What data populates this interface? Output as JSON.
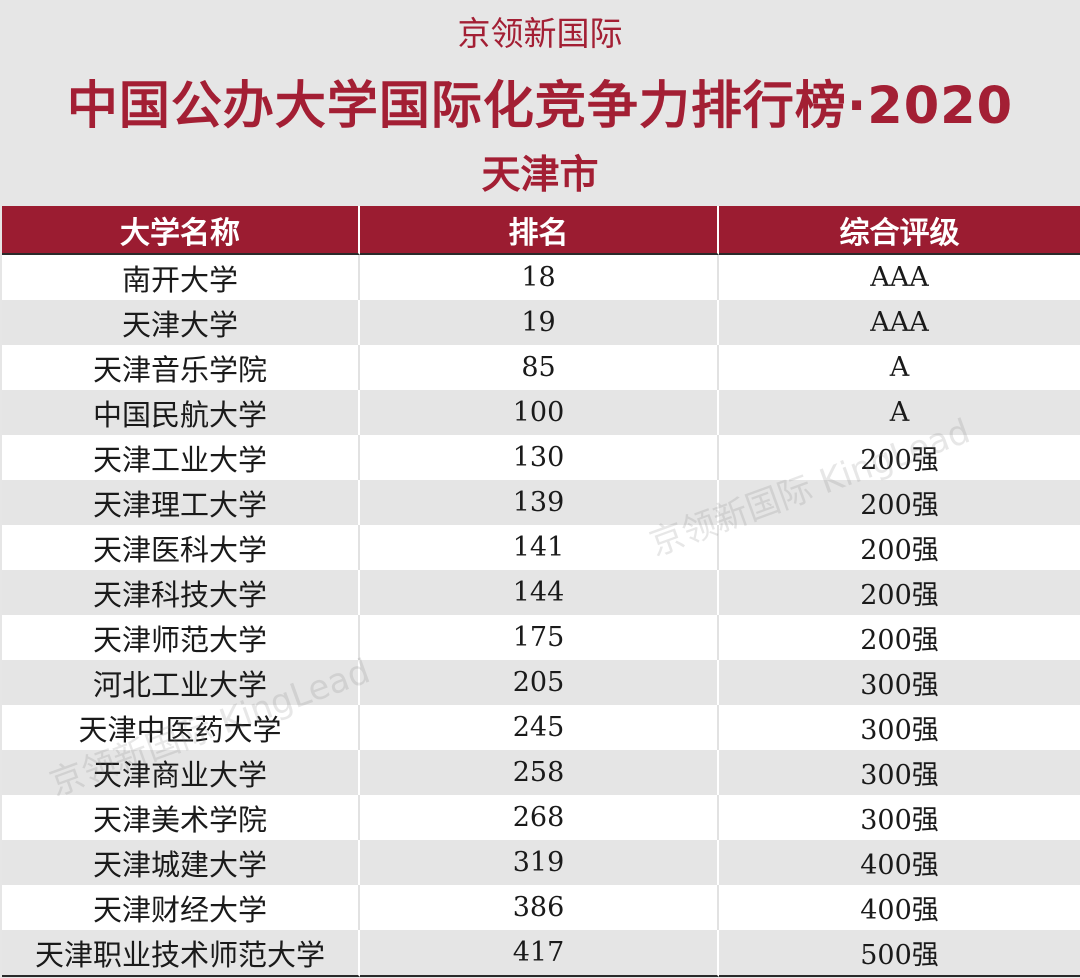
{
  "header": {
    "brand": "京领新国际",
    "title": "中国公办大学国际化竞争力排行榜·2020",
    "city": "天津市"
  },
  "table": {
    "columns": [
      "大学名称",
      "排名",
      "综合评级"
    ],
    "rows": [
      [
        "南开大学",
        "18",
        "AAA"
      ],
      [
        "天津大学",
        "19",
        "AAA"
      ],
      [
        "天津音乐学院",
        "85",
        "A"
      ],
      [
        "中国民航大学",
        "100",
        "A"
      ],
      [
        "天津工业大学",
        "130",
        "200强"
      ],
      [
        "天津理工大学",
        "139",
        "200强"
      ],
      [
        "天津医科大学",
        "141",
        "200强"
      ],
      [
        "天津科技大学",
        "144",
        "200强"
      ],
      [
        "天津师范大学",
        "175",
        "200强"
      ],
      [
        "河北工业大学",
        "205",
        "300强"
      ],
      [
        "天津中医药大学",
        "245",
        "300强"
      ],
      [
        "天津商业大学",
        "258",
        "300强"
      ],
      [
        "天津美术学院",
        "268",
        "300强"
      ],
      [
        "天津城建大学",
        "319",
        "400强"
      ],
      [
        "天津财经大学",
        "386",
        "400强"
      ],
      [
        "天津职业技术师范大学",
        "417",
        "500强"
      ]
    ]
  },
  "watermark": "京领新国际 KingLead",
  "colors": {
    "accent": "#9b1c31",
    "title": "#a31f34",
    "background": "#e6e6e6"
  }
}
